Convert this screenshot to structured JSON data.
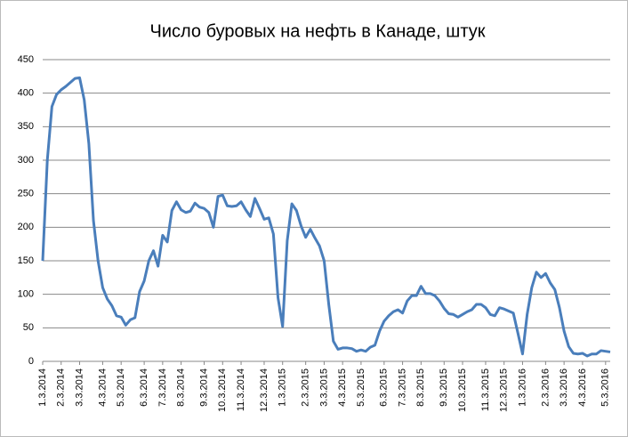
{
  "chart_data": {
    "type": "line",
    "title": "Число буровых на нефть в Канаде, штук",
    "categories": [
      "1.3.2014",
      null,
      null,
      null,
      "2.3.2014",
      null,
      null,
      null,
      "3.3.2014",
      null,
      null,
      null,
      null,
      "4.3.2014",
      null,
      null,
      null,
      "5.3.2014",
      null,
      null,
      null,
      null,
      "6.3.2014",
      null,
      null,
      null,
      "7.3.2014",
      null,
      null,
      null,
      "8.3.2014",
      null,
      null,
      null,
      null,
      "9.3.2014",
      null,
      null,
      null,
      "10.3.2014",
      null,
      null,
      null,
      "11.3.2014",
      null,
      null,
      null,
      null,
      "12.3.2014",
      null,
      null,
      null,
      "1.3.2015",
      null,
      null,
      null,
      null,
      "2.3.2015",
      null,
      null,
      null,
      "3.3.2015",
      null,
      null,
      null,
      "4.3.2015",
      null,
      null,
      null,
      "5.3.2015",
      null,
      null,
      null,
      null,
      "6.3.2015",
      null,
      null,
      null,
      "7.3.2015",
      null,
      null,
      null,
      "8.3.2015",
      null,
      null,
      null,
      null,
      "9.3.2015",
      null,
      null,
      null,
      "10.3.2015",
      null,
      null,
      null,
      null,
      "11.3.2015",
      null,
      null,
      null,
      "12.3.2015",
      null,
      null,
      null,
      "1.3.2016",
      null,
      null,
      null,
      null,
      "2.3.2016",
      null,
      null,
      null,
      "3.3.2016",
      null,
      null,
      null,
      "4.3.2016",
      null,
      null,
      null,
      null,
      "5.3.2016",
      null
    ],
    "values": [
      150,
      300,
      380,
      398,
      405,
      410,
      416,
      422,
      423,
      390,
      325,
      210,
      150,
      110,
      93,
      83,
      68,
      66,
      54,
      62,
      65,
      104,
      120,
      150,
      165,
      142,
      188,
      178,
      225,
      238,
      226,
      222,
      224,
      236,
      230,
      228,
      222,
      200,
      246,
      248,
      232,
      231,
      232,
      238,
      226,
      216,
      243,
      228,
      212,
      214,
      190,
      95,
      52,
      180,
      235,
      225,
      202,
      185,
      197,
      184,
      172,
      150,
      85,
      30,
      18,
      20,
      20,
      19,
      15,
      17,
      15,
      21,
      24,
      45,
      60,
      68,
      74,
      77,
      72,
      90,
      98,
      98,
      112,
      101,
      101,
      98,
      90,
      79,
      71,
      70,
      66,
      70,
      74,
      77,
      85,
      85,
      80,
      70,
      68,
      80,
      78,
      75,
      72,
      42,
      11,
      70,
      110,
      133,
      125,
      131,
      117,
      107,
      80,
      45,
      22,
      12,
      11,
      12,
      8,
      11,
      11,
      16,
      15,
      14
    ],
    "color": "#4a7ebb",
    "ylim": [
      0,
      450
    ],
    "yticks": [
      0,
      50,
      100,
      150,
      200,
      250,
      300,
      350,
      400,
      450
    ],
    "grid": true
  }
}
